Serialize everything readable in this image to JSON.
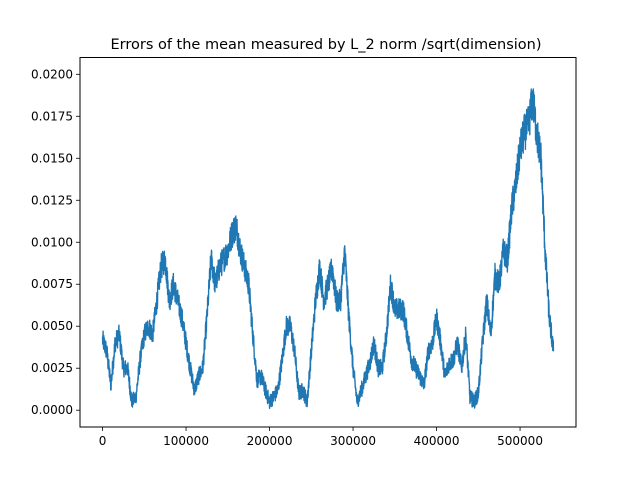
{
  "chart_data": {
    "type": "line",
    "title": "Errors of the mean measured by L_2 norm /sqrt(dimension)",
    "xlabel": "",
    "ylabel": "",
    "xlim": [
      -27000,
      567000
    ],
    "ylim": [
      -0.001,
      0.021
    ],
    "x_ticks": [
      0,
      100000,
      200000,
      300000,
      400000,
      500000
    ],
    "x_tick_labels": [
      "0",
      "100000",
      "200000",
      "300000",
      "400000",
      "500000"
    ],
    "y_ticks": [
      0.0,
      0.0025,
      0.005,
      0.0075,
      0.01,
      0.0125,
      0.015,
      0.0175,
      0.02
    ],
    "y_tick_labels": [
      "0.0000",
      "0.0025",
      "0.0050",
      "0.0075",
      "0.0100",
      "0.0125",
      "0.0150",
      "0.0175",
      "0.0200"
    ],
    "grid": false,
    "legend": "none",
    "series_color": "#1f77b4",
    "series": [
      {
        "x": [
          0,
          5000,
          10000,
          15000,
          20000,
          25000,
          30000,
          35000,
          40000,
          45000,
          50000,
          55000,
          60000,
          65000,
          70000,
          75000,
          80000,
          85000,
          90000,
          95000,
          100000,
          105000,
          110000,
          115000,
          120000,
          125000,
          130000,
          135000,
          140000,
          145000,
          150000,
          155000,
          160000,
          165000,
          170000,
          175000,
          180000,
          185000,
          190000,
          195000,
          200000,
          205000,
          210000,
          215000,
          220000,
          225000,
          230000,
          235000,
          240000,
          245000,
          250000,
          255000,
          260000,
          265000,
          270000,
          275000,
          280000,
          285000,
          290000,
          295000,
          300000,
          305000,
          310000,
          315000,
          320000,
          325000,
          330000,
          335000,
          340000,
          345000,
          350000,
          355000,
          360000,
          365000,
          370000,
          375000,
          380000,
          385000,
          390000,
          395000,
          400000,
          405000,
          410000,
          415000,
          420000,
          425000,
          430000,
          435000,
          440000,
          445000,
          450000,
          455000,
          460000,
          465000,
          470000,
          475000,
          480000,
          485000,
          490000,
          495000,
          500000,
          505000,
          510000,
          515000,
          520000,
          525000,
          530000,
          535000,
          540000
        ],
        "y": [
          0.0042,
          0.0035,
          0.0015,
          0.004,
          0.0045,
          0.0025,
          0.0025,
          0.0005,
          0.0008,
          0.003,
          0.0045,
          0.005,
          0.0045,
          0.0065,
          0.0085,
          0.009,
          0.0065,
          0.0075,
          0.0065,
          0.0055,
          0.004,
          0.0025,
          0.0012,
          0.002,
          0.0025,
          0.0055,
          0.009,
          0.0075,
          0.0085,
          0.009,
          0.0095,
          0.0105,
          0.011,
          0.0095,
          0.0085,
          0.0075,
          0.0045,
          0.0018,
          0.002,
          0.0012,
          0.0005,
          0.0008,
          0.0012,
          0.003,
          0.005,
          0.005,
          0.0035,
          0.001,
          0.0012,
          0.0005,
          0.0035,
          0.0065,
          0.0085,
          0.0065,
          0.0075,
          0.0085,
          0.0065,
          0.0065,
          0.0095,
          0.0055,
          0.0025,
          0.0005,
          0.0012,
          0.002,
          0.0028,
          0.004,
          0.0025,
          0.0025,
          0.0045,
          0.0075,
          0.006,
          0.006,
          0.006,
          0.0045,
          0.003,
          0.0025,
          0.002,
          0.0015,
          0.0035,
          0.004,
          0.0055,
          0.004,
          0.002,
          0.0028,
          0.003,
          0.004,
          0.0025,
          0.0045,
          0.0008,
          0.0005,
          0.001,
          0.004,
          0.0065,
          0.0045,
          0.008,
          0.0075,
          0.0095,
          0.009,
          0.012,
          0.0135,
          0.0155,
          0.0165,
          0.017,
          0.0185,
          0.0165,
          0.015,
          0.0095,
          0.0055,
          0.0035
        ]
      }
    ]
  }
}
